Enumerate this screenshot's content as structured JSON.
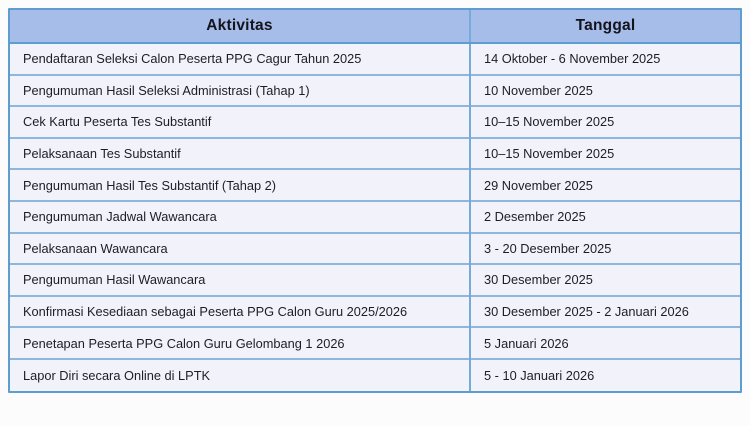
{
  "table": {
    "columns": [
      {
        "key": "activity",
        "label": "Aktivitas"
      },
      {
        "key": "date",
        "label": "Tanggal"
      }
    ],
    "rows": [
      {
        "activity": "Pendaftaran Seleksi Calon Peserta PPG Cagur Tahun 2025",
        "date": "14 Oktober - 6 November 2025"
      },
      {
        "activity": "Pengumuman Hasil Seleksi Administrasi (Tahap 1)",
        "date": "10 November 2025"
      },
      {
        "activity": "Cek Kartu Peserta Tes Substantif",
        "date": "10–15 November 2025"
      },
      {
        "activity": "Pelaksanaan Tes Substantif",
        "date": "10–15 November 2025"
      },
      {
        "activity": "Pengumuman Hasil Tes Substantif (Tahap 2)",
        "date": "29 November 2025"
      },
      {
        "activity": "Pengumuman Jadwal Wawancara",
        "date": "2 Desember 2025"
      },
      {
        "activity": "Pelaksanaan Wawancara",
        "date": "3 - 20 Desember 2025"
      },
      {
        "activity": "Pengumuman Hasil Wawancara",
        "date": "30 Desember 2025"
      },
      {
        "activity": "Konfirmasi Kesediaan sebagai Peserta PPG Calon Guru 2025/2026",
        "date": "30 Desember 2025 - 2 Januari 2026"
      },
      {
        "activity": "Penetapan Peserta PPG Calon Guru Gelombang 1 2026",
        "date": "5 Januari 2026"
      },
      {
        "activity": "Lapor Diri secara Online di LPTK",
        "date": "5 - 10 Januari 2026"
      }
    ]
  },
  "colors": {
    "header_bg": "#a6bde9",
    "row_bg": "#f2f3fa",
    "outer_border": "#5e9dd0",
    "grid_line": "#8fb6dc",
    "column_line": "#74abd8",
    "text": "#1d1d27",
    "page_bg": "#fcfcfd"
  }
}
